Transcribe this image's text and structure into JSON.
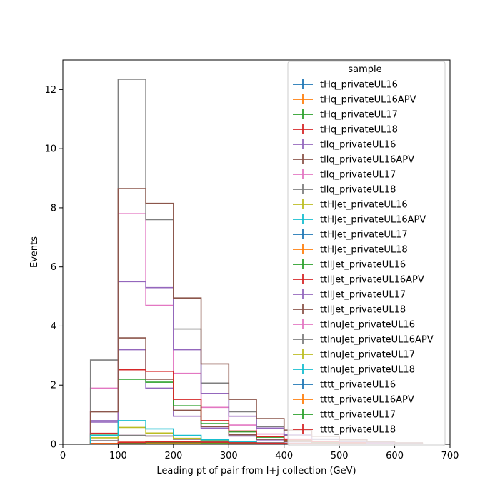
{
  "chart_data": {
    "type": "line",
    "title": "",
    "xlabel": "Leading pt of pair from l+j collection (GeV)",
    "ylabel": "Events",
    "xlim": [
      0,
      700
    ],
    "ylim": [
      0,
      13
    ],
    "xticks": [
      0,
      100,
      200,
      300,
      400,
      500,
      600,
      700
    ],
    "yticks": [
      0,
      2,
      4,
      6,
      8,
      10,
      12
    ],
    "bin_edges": [
      0,
      50,
      100,
      150,
      200,
      250,
      300,
      350,
      400,
      450,
      500,
      550,
      600,
      650,
      700
    ],
    "grid": false,
    "legend": {
      "title": "sample",
      "placement": "top-right"
    },
    "series": [
      {
        "name": "tHq_privateUL16",
        "color": "#1f77b4",
        "values": [
          0,
          0.01,
          0.03,
          0.03,
          0.02,
          0.01,
          0.01,
          0.005,
          0,
          0,
          0,
          0,
          0,
          0
        ]
      },
      {
        "name": "tHq_privateUL16APV",
        "color": "#ff7f0e",
        "values": [
          0,
          0.01,
          0.03,
          0.03,
          0.02,
          0.01,
          0.01,
          0.005,
          0,
          0,
          0,
          0,
          0,
          0
        ]
      },
      {
        "name": "tHq_privateUL17",
        "color": "#2ca02c",
        "values": [
          0,
          0.02,
          0.05,
          0.05,
          0.03,
          0.02,
          0.01,
          0.01,
          0,
          0,
          0,
          0,
          0,
          0
        ]
      },
      {
        "name": "tHq_privateUL18",
        "color": "#d62728",
        "values": [
          0,
          0.03,
          0.07,
          0.07,
          0.04,
          0.02,
          0.01,
          0.01,
          0,
          0,
          0,
          0,
          0,
          0
        ]
      },
      {
        "name": "tllq_privateUL16",
        "color": "#9467bd",
        "values": [
          0,
          0.8,
          3.2,
          1.9,
          0.95,
          0.55,
          0.28,
          0.15,
          0.08,
          0.04,
          0.02,
          0.01,
          0.01,
          0
        ]
      },
      {
        "name": "tllq_privateUL16APV",
        "color": "#8c564b",
        "values": [
          0,
          1.1,
          3.6,
          2.2,
          1.15,
          0.6,
          0.32,
          0.17,
          0.09,
          0.05,
          0.02,
          0.01,
          0.01,
          0
        ]
      },
      {
        "name": "tllq_privateUL17",
        "color": "#e377c2",
        "values": [
          0,
          1.9,
          7.8,
          4.7,
          2.4,
          1.25,
          0.65,
          0.35,
          0.18,
          0.1,
          0.05,
          0.03,
          0.02,
          0
        ]
      },
      {
        "name": "tllq_privateUL18",
        "color": "#7f7f7f",
        "values": [
          0,
          2.85,
          12.35,
          7.6,
          3.9,
          2.07,
          1.1,
          0.6,
          0.3,
          0.16,
          0.08,
          0.05,
          0.03,
          0
        ]
      },
      {
        "name": "ttHJet_privateUL16",
        "color": "#bcbd22",
        "values": [
          0,
          0.01,
          0.02,
          0.02,
          0.02,
          0.01,
          0.01,
          0.005,
          0,
          0,
          0,
          0,
          0,
          0
        ]
      },
      {
        "name": "ttHJet_privateUL16APV",
        "color": "#17becf",
        "values": [
          0,
          0.01,
          0.02,
          0.02,
          0.02,
          0.01,
          0.01,
          0.005,
          0,
          0,
          0,
          0,
          0,
          0
        ]
      },
      {
        "name": "ttHJet_privateUL17",
        "color": "#1f77b4",
        "values": [
          0,
          0.02,
          0.04,
          0.04,
          0.03,
          0.02,
          0.01,
          0.01,
          0,
          0,
          0,
          0,
          0,
          0
        ]
      },
      {
        "name": "ttHJet_privateUL18",
        "color": "#ff7f0e",
        "values": [
          0,
          0.03,
          0.06,
          0.06,
          0.04,
          0.02,
          0.01,
          0.01,
          0,
          0,
          0,
          0,
          0,
          0
        ]
      },
      {
        "name": "ttllJet_privateUL16",
        "color": "#2ca02c",
        "values": [
          0,
          0.35,
          2.2,
          2.1,
          1.3,
          0.7,
          0.42,
          0.24,
          0.13,
          0.08,
          0.04,
          0.02,
          0.01,
          0
        ]
      },
      {
        "name": "ttllJet_privateUL16APV",
        "color": "#d62728",
        "values": [
          0,
          0.37,
          2.52,
          2.47,
          1.52,
          0.8,
          0.45,
          0.26,
          0.15,
          0.09,
          0.05,
          0.03,
          0.02,
          0
        ]
      },
      {
        "name": "ttllJet_privateUL17",
        "color": "#9467bd",
        "values": [
          0,
          0.75,
          5.5,
          5.3,
          3.2,
          1.72,
          0.95,
          0.55,
          0.32,
          0.18,
          0.1,
          0.05,
          0.03,
          0
        ]
      },
      {
        "name": "ttllJet_privateUL18",
        "color": "#8c564b",
        "values": [
          0,
          1.1,
          8.65,
          8.15,
          4.95,
          2.72,
          1.52,
          0.87,
          0.48,
          0.27,
          0.15,
          0.08,
          0.05,
          0
        ]
      },
      {
        "name": "ttlnuJet_privateUL16",
        "color": "#e377c2",
        "values": [
          0,
          0.12,
          0.3,
          0.28,
          0.17,
          0.1,
          0.06,
          0.03,
          0.02,
          0.01,
          0.005,
          0,
          0,
          0
        ]
      },
      {
        "name": "ttlnuJet_privateUL16APV",
        "color": "#7f7f7f",
        "values": [
          0,
          0.12,
          0.3,
          0.28,
          0.17,
          0.1,
          0.06,
          0.03,
          0.02,
          0.01,
          0.005,
          0,
          0,
          0
        ]
      },
      {
        "name": "ttlnuJet_privateUL17",
        "color": "#bcbd22",
        "values": [
          0,
          0.22,
          0.57,
          0.38,
          0.2,
          0.12,
          0.07,
          0.04,
          0.02,
          0.01,
          0.005,
          0,
          0,
          0
        ]
      },
      {
        "name": "ttlnuJet_privateUL18",
        "color": "#17becf",
        "values": [
          0,
          0.3,
          0.8,
          0.52,
          0.3,
          0.15,
          0.08,
          0.05,
          0.03,
          0.015,
          0.008,
          0,
          0,
          0
        ]
      },
      {
        "name": "tttt_privateUL16",
        "color": "#1f77b4",
        "values": [
          0,
          0.005,
          0.02,
          0.03,
          0.03,
          0.03,
          0.02,
          0.015,
          0.01,
          0.005,
          0.003,
          0,
          0,
          0
        ]
      },
      {
        "name": "tttt_privateUL16APV",
        "color": "#ff7f0e",
        "values": [
          0,
          0.005,
          0.02,
          0.03,
          0.03,
          0.03,
          0.02,
          0.015,
          0.01,
          0.005,
          0.003,
          0,
          0,
          0
        ]
      },
      {
        "name": "tttt_privateUL17",
        "color": "#2ca02c",
        "values": [
          0,
          0.01,
          0.04,
          0.06,
          0.06,
          0.05,
          0.04,
          0.03,
          0.02,
          0.01,
          0.005,
          0,
          0,
          0
        ]
      },
      {
        "name": "tttt_privateUL18",
        "color": "#d62728",
        "values": [
          0,
          0.015,
          0.06,
          0.08,
          0.08,
          0.07,
          0.05,
          0.04,
          0.025,
          0.015,
          0.008,
          0,
          0,
          0
        ]
      }
    ]
  }
}
